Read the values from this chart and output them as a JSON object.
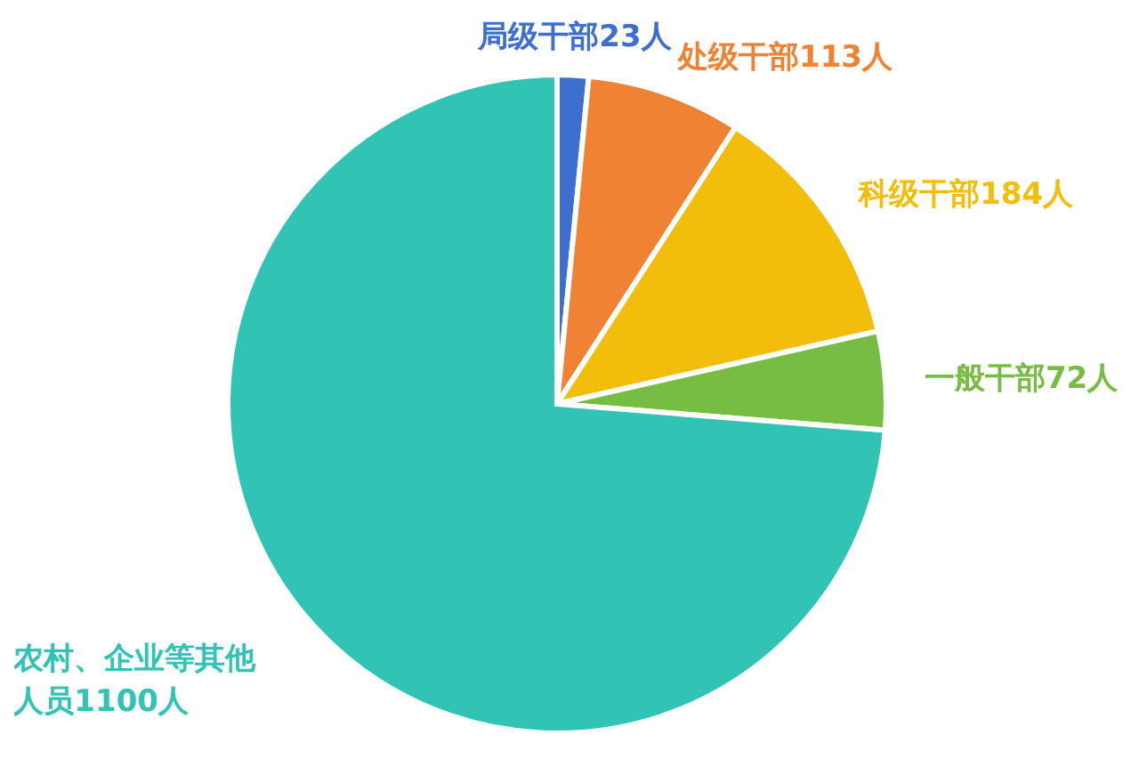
{
  "chart_data": {
    "type": "pie",
    "categories": [
      "局级干部23人",
      "处级干部113人",
      "科级干部184人",
      "一般干部72人",
      "农村、企业等其他人员1100人"
    ],
    "values": [
      23,
      113,
      184,
      72,
      1100
    ],
    "colors": [
      "#3d6fd1",
      "#ef8233",
      "#f3be0b",
      "#77bd43",
      "#31c3b4"
    ],
    "legend": false
  }
}
